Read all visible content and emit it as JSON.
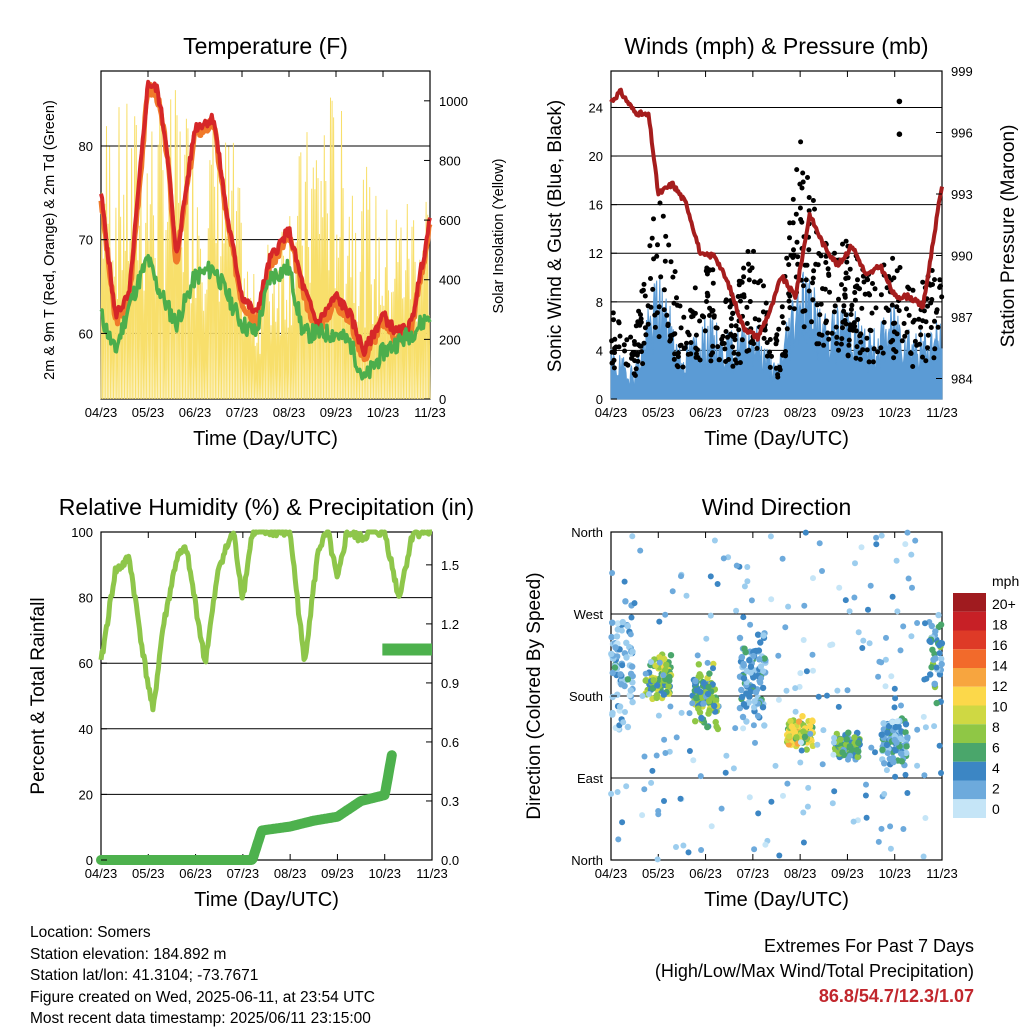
{
  "panels": {
    "temperature": {
      "title": "Temperature (F)",
      "ylabel_left": "2m & 9m T (Red, Orange) & 2m Td (Green)",
      "ylabel_right": "Solar Insolation (Yellow)",
      "xlabel": "Time (Day/UTC)"
    },
    "winds": {
      "title": "Winds (mph) & Pressure (mb)",
      "ylabel_left": "Sonic Wind & Gust (Blue, Black)",
      "ylabel_right": "Station Pressure (Maroon)",
      "xlabel": "Time (Day/UTC)"
    },
    "humidity": {
      "title": "Relative Humidity (%) & Precipitation (in)",
      "ylabel_left": "Percent & Total Rainfall",
      "xlabel": "Time (Day/UTC)"
    },
    "direction": {
      "title": "Wind Direction",
      "ylabel_left": "Direction (Colored By Speed)",
      "xlabel": "Time (Day/UTC)",
      "colorbar_title": "mph",
      "colorbar_labels": [
        "20+",
        "18",
        "16",
        "14",
        "12",
        "10",
        "8",
        "6",
        "4",
        "2",
        "0"
      ],
      "colorbar_colors": [
        "#a01b1f",
        "#c72026",
        "#de3a27",
        "#f26a2b",
        "#f7a53f",
        "#fcd84a",
        "#cfd843",
        "#8fc745",
        "#4aa66b",
        "#3c86c4",
        "#6daadc",
        "#9ccdee",
        "#c5e5f7"
      ]
    }
  },
  "info": {
    "location": "Location: Somers",
    "elevation": "Station elevation: 184.892 m",
    "latlon": "Station lat/lon: 41.3104; -73.7671",
    "created": "Figure created on Wed, 2025-06-11, at 23:54 UTC",
    "recent": "Most recent data timestamp: 2025/06/11 23:15:00"
  },
  "extremes": {
    "title": "Extremes For Past 7 Days",
    "subtitle": "(High/Low/Max Wind/Total Precipitation)",
    "values": "86.8/54.7/12.3/1.07"
  },
  "chart_data": [
    {
      "type": "line",
      "title": "Temperature (F)",
      "xlabel": "Time (Day/UTC)",
      "ylabel": "2m & 9m T (Red, Orange) & 2m Td (Green)",
      "y2label": "Solar Insolation (Yellow)",
      "x_ticks": [
        "04/23",
        "05/23",
        "06/23",
        "07/23",
        "08/23",
        "09/23",
        "10/23",
        "11/23"
      ],
      "y_ticks": [
        60,
        70,
        80
      ],
      "y2_ticks": [
        0,
        200,
        400,
        600,
        800,
        1000
      ],
      "ylim": [
        53,
        88
      ],
      "y2lim": [
        0,
        1100
      ],
      "colors": {
        "t2m": "#d62728",
        "t9m": "#f07a2a",
        "td": "#4cae4c",
        "solar": "#f8df6b"
      },
      "series": [
        {
          "name": "2m T",
          "color": "red",
          "x": [
            0,
            0.3,
            0.6,
            1.0,
            1.2,
            1.4,
            1.6,
            2.0,
            2.4,
            2.7,
            3.0,
            3.3,
            3.6,
            4.0,
            4.3,
            4.6,
            5.0,
            5.3,
            5.6,
            6.0,
            6.3,
            6.6,
            7.0,
            7.3,
            7.6,
            8.0
          ],
          "values": [
            75,
            62,
            64,
            86.8,
            86,
            80,
            68,
            82,
            83,
            72,
            64,
            62,
            68,
            71,
            65,
            61,
            64,
            62,
            58,
            62,
            60,
            61,
            72,
            64,
            61,
            78
          ]
        },
        {
          "name": "2m Td",
          "color": "green",
          "x": [
            0,
            0.3,
            0.6,
            1.0,
            1.2,
            1.4,
            1.6,
            2.0,
            2.4,
            2.7,
            3.0,
            3.3,
            3.6,
            4.0,
            4.3,
            4.6,
            5.0,
            5.3,
            5.6,
            6.0,
            6.3,
            6.6,
            7.0,
            7.3,
            7.6,
            8.0
          ],
          "values": [
            62,
            58,
            63,
            68,
            65,
            63,
            61,
            66,
            67,
            64,
            61,
            60,
            66,
            67,
            60,
            60,
            60,
            59,
            55,
            58,
            59,
            60,
            62,
            58,
            56,
            57
          ]
        },
        {
          "name": "Solar",
          "color": "yellow",
          "x": [
            0.9,
            1.7,
            2.8,
            3.2,
            4.8,
            6.0,
            7.8
          ],
          "values": [
            1000,
            1050,
            900,
            400,
            1100,
            650,
            900
          ]
        }
      ]
    },
    {
      "type": "line",
      "title": "Winds (mph) & Pressure (mb)",
      "xlabel": "Time (Day/UTC)",
      "ylabel": "Sonic Wind & Gust (Blue, Black)",
      "y2label": "Station Pressure (Maroon)",
      "x_ticks": [
        "04/23",
        "05/23",
        "06/23",
        "07/23",
        "08/23",
        "09/23",
        "10/23",
        "11/23"
      ],
      "y_ticks": [
        0,
        4,
        8,
        12,
        16,
        20,
        24
      ],
      "y2_ticks": [
        984,
        987,
        990,
        993,
        996,
        999
      ],
      "ylim": [
        0,
        27
      ],
      "y2lim": [
        983,
        999
      ],
      "colors": {
        "wind": "#5b9bd5",
        "gust": "#000000",
        "pressure": "#a51d1d"
      },
      "series": [
        {
          "name": "Pressure",
          "color": "maroon",
          "x": [
            0,
            0.2,
            0.5,
            0.8,
            1.0,
            1.3,
            1.6,
            1.9,
            2.2,
            2.5,
            2.8,
            3.1,
            3.4,
            3.6,
            3.9,
            4.2,
            4.5,
            4.8,
            5.1,
            5.4,
            5.7,
            6.0,
            6.3,
            6.6,
            6.9,
            7.2,
            7.5,
            7.8,
            8.0
          ],
          "values": [
            997.5,
            998,
            997,
            996.8,
            993,
            993.5,
            992.5,
            990,
            990,
            988.5,
            986.5,
            986,
            987.5,
            989,
            988,
            992,
            990.5,
            989.5,
            990.5,
            989,
            989.5,
            988,
            988,
            987.5,
            992,
            996.3,
            995.8,
            994.5,
            993.5
          ]
        },
        {
          "name": "Wind",
          "color": "blue",
          "x": [
            0,
            0.5,
            1.0,
            1.5,
            2.0,
            2.5,
            3.0,
            3.5,
            4.0,
            4.5,
            5.0,
            5.5,
            6.0,
            6.5,
            7.0,
            7.5,
            8.0
          ],
          "values": [
            3,
            2,
            8,
            3,
            5,
            4,
            5,
            2,
            9,
            5,
            6,
            4,
            6,
            4,
            5,
            3,
            6
          ]
        },
        {
          "name": "Gust",
          "color": "black",
          "x": [
            0,
            0.5,
            1.0,
            1.5,
            2.0,
            2.5,
            3.0,
            3.5,
            4.0,
            4.5,
            5.0,
            5.5,
            6.0,
            6.5,
            7.0,
            7.5,
            8.0
          ],
          "values": [
            6,
            4,
            14,
            6,
            9,
            7,
            10,
            4,
            17,
            10,
            10,
            8,
            9,
            7,
            10,
            6,
            13
          ]
        }
      ]
    },
    {
      "type": "line",
      "title": "Relative Humidity (%) & Precipitation (in)",
      "xlabel": "Time (Day/UTC)",
      "ylabel": "Percent & Total Rainfall",
      "x_ticks": [
        "04/23",
        "05/23",
        "06/23",
        "07/23",
        "08/23",
        "09/23",
        "10/23",
        "11/23"
      ],
      "y_ticks": [
        0,
        20,
        40,
        60,
        80,
        100
      ],
      "y2_ticks": [
        "0.0",
        "0.3",
        "0.6",
        "0.9",
        "1.2",
        "1.5"
      ],
      "ylim": [
        0,
        100
      ],
      "y2lim": [
        0,
        1.667
      ],
      "colors": {
        "rh": "#8ec64a",
        "precip": "#4db14d"
      },
      "series": [
        {
          "name": "RH",
          "color": "light-green",
          "x": [
            0,
            0.3,
            0.6,
            0.9,
            1.1,
            1.3,
            1.6,
            1.8,
            2.0,
            2.2,
            2.5,
            2.8,
            3.0,
            3.2,
            3.5,
            3.8,
            4.0,
            4.3,
            4.6,
            4.8,
            5.0,
            5.2,
            5.5,
            5.7,
            6.0,
            6.3,
            6.6,
            6.9,
            7.2,
            7.4,
            7.7,
            8.0
          ],
          "values": [
            60,
            88,
            92,
            62,
            45,
            70,
            92,
            95,
            78,
            60,
            90,
            100,
            80,
            100,
            100,
            100,
            100,
            60,
            95,
            100,
            85,
            100,
            98,
            100,
            100,
            80,
            100,
            100,
            100,
            100,
            50,
            52
          ]
        },
        {
          "name": "Precip",
          "color": "green",
          "x": [
            0,
            1,
            2,
            3.2,
            3.4,
            4.0,
            4.5,
            5.0,
            5.5,
            6.0,
            6.2,
            6.5,
            7.0,
            7.6,
            8.0
          ],
          "values": [
            0,
            0,
            0,
            0,
            0.15,
            0.17,
            0.2,
            0.22,
            0.3,
            0.33,
            0.6,
            0.7,
            0.73,
            1.07,
            1.07
          ]
        }
      ]
    },
    {
      "type": "scatter",
      "title": "Wind Direction",
      "xlabel": "Time (Day/UTC)",
      "ylabel": "Direction (Colored By Speed)",
      "x_ticks": [
        "04/23",
        "05/23",
        "06/23",
        "07/23",
        "08/23",
        "09/23",
        "10/23",
        "11/23"
      ],
      "y_ticks": [
        "North",
        "East",
        "South",
        "West",
        "North"
      ],
      "ylim": [
        0,
        360
      ],
      "colorbar": [
        "20+",
        "18",
        "16",
        "14",
        "12",
        "10",
        "8",
        "6",
        "4",
        "2",
        "0"
      ],
      "clusters": [
        {
          "x": 0.2,
          "dir": 210,
          "spread": 60,
          "speed": 3
        },
        {
          "x": 1.0,
          "dir": 200,
          "spread": 20,
          "speed": 8
        },
        {
          "x": 2.0,
          "dir": 180,
          "spread": 30,
          "speed": 7
        },
        {
          "x": 3.0,
          "dir": 200,
          "spread": 40,
          "speed": 4
        },
        {
          "x": 4.0,
          "dir": 140,
          "spread": 15,
          "speed": 10
        },
        {
          "x": 5.0,
          "dir": 125,
          "spread": 12,
          "speed": 6
        },
        {
          "x": 6.0,
          "dir": 130,
          "spread": 20,
          "speed": 4
        },
        {
          "x": 7.0,
          "dir": 220,
          "spread": 40,
          "speed": 5
        },
        {
          "x": 7.8,
          "dir": 260,
          "spread": 30,
          "speed": 7
        }
      ]
    }
  ]
}
